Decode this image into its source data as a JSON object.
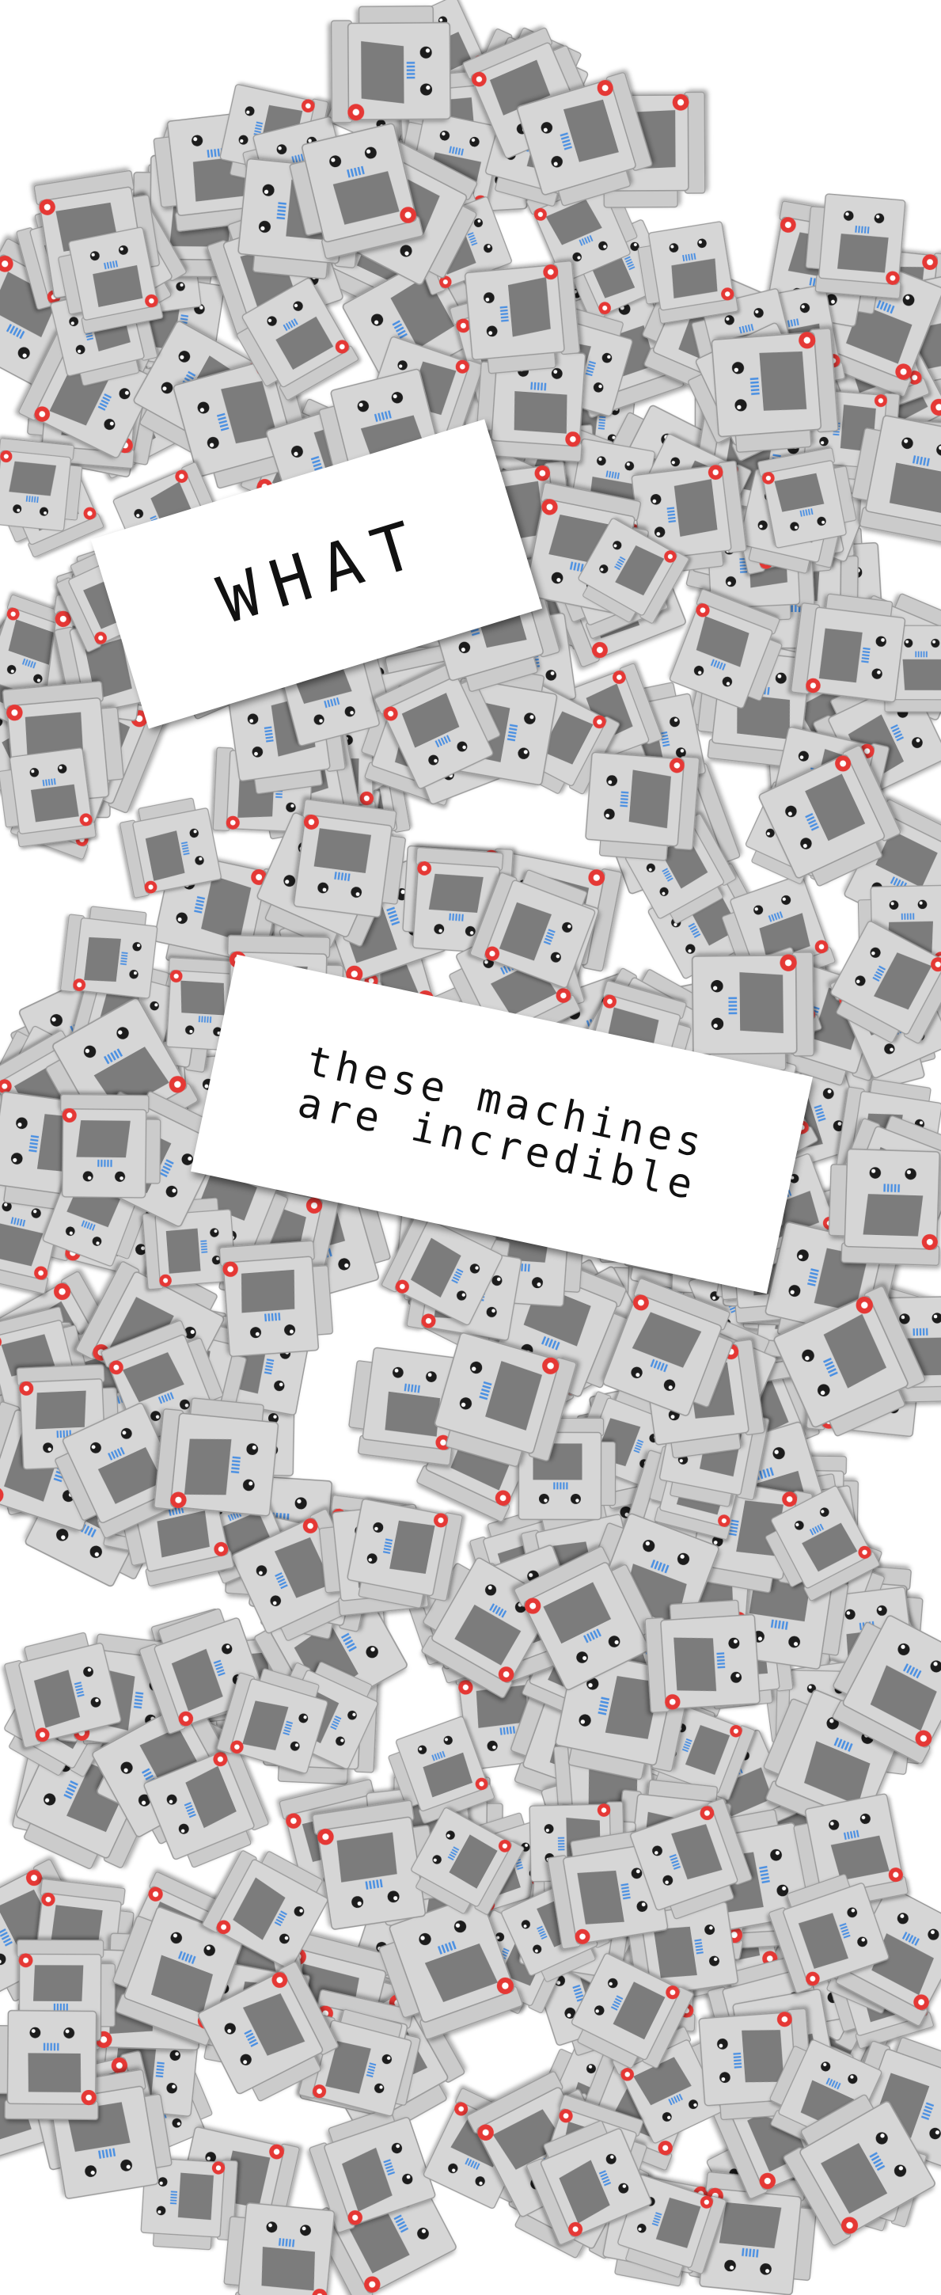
{
  "headline": "WHAT",
  "subtitle": {
    "line1": "these machines",
    "line2": "are incredible"
  },
  "colors": {
    "background": "#ffffff",
    "robot_body": "#cbcbcb",
    "robot_face": "#d6d6d6",
    "robot_outline": "#9a9a9a",
    "robot_screen": "#7b7b7b",
    "robot_eye": "#1e1e1e",
    "robot_grille": "#4a90e2",
    "robot_button": "#e53935",
    "card": "#ffffff",
    "text": "#111111"
  },
  "icons": {
    "robot": "boxy-robot-face-icon",
    "button": "red-ring-button-icon"
  }
}
